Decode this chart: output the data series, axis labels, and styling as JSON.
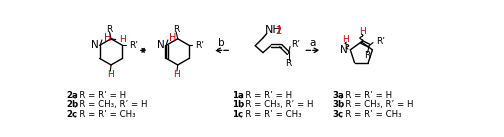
{
  "background_color": "#ffffff",
  "figsize": [
    5.04,
    1.37
  ],
  "dpi": 100,
  "black": "#000000",
  "red": "#cc0000",
  "labels_2": [
    [
      "2a",
      ", R = R’ = H"
    ],
    [
      "2b",
      ", R = CH₃, R’ = H"
    ],
    [
      "2c",
      ", R = R’ = CH₃"
    ]
  ],
  "labels_1": [
    [
      "1a",
      ", R = R’ = H"
    ],
    [
      "1b",
      ", R = CH₃, R’ = H"
    ],
    [
      "1c",
      ", R = R’ = CH₃"
    ]
  ],
  "labels_3": [
    [
      "3a",
      ", R = R’ = H"
    ],
    [
      "3b",
      ", R = CH₃, R’ = H"
    ],
    [
      "3c",
      ", R = R’ = CH₃"
    ]
  ]
}
